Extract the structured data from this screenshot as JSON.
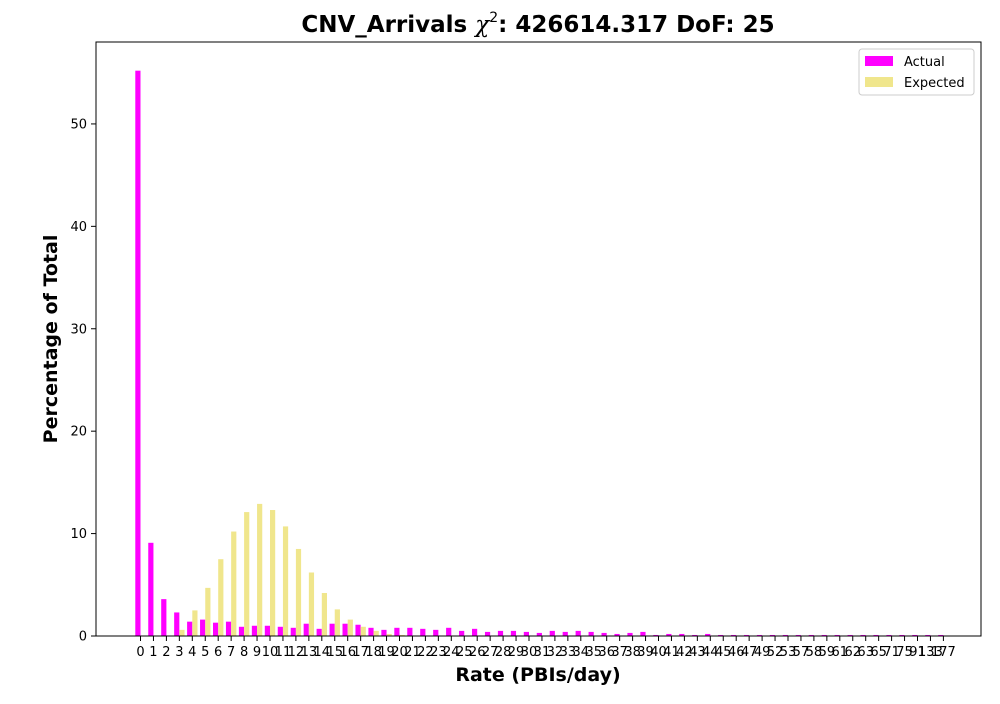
{
  "chart_data": {
    "type": "bar",
    "title_prefix": "CNV_Arrivals ",
    "title_chi": "χ",
    "title_sup": "2",
    "title_suffix": ": 426614.317 DoF: 25",
    "xlabel": "Rate (PBIs/day)",
    "ylabel": "Percentage of Total",
    "ylim": [
      0,
      58
    ],
    "yticks": [
      0,
      10,
      20,
      30,
      40,
      50
    ],
    "legend_position": "top-right",
    "colors": {
      "actual": "#ff00ff",
      "expected": "#f0e68c"
    },
    "categories": [
      "0",
      "1",
      "2",
      "3",
      "4",
      "5",
      "6",
      "7",
      "8",
      "9",
      "10",
      "11",
      "12",
      "13",
      "14",
      "15",
      "16",
      "17",
      "18",
      "19",
      "20",
      "21",
      "22",
      "23",
      "24",
      "25",
      "26",
      "27",
      "28",
      "29",
      "30",
      "31",
      "32",
      "33",
      "34",
      "35",
      "36",
      "37",
      "38",
      "39",
      "40",
      "41",
      "42",
      "43",
      "44",
      "45",
      "46",
      "47",
      "49",
      "52",
      "53",
      "57",
      "58",
      "59",
      "61",
      "62",
      "63",
      "65",
      "71",
      "75",
      "91",
      "133",
      "177"
    ],
    "series": [
      {
        "name": "Actual",
        "values": [
          55.2,
          9.1,
          3.6,
          2.3,
          1.4,
          1.6,
          1.3,
          1.4,
          0.9,
          1.0,
          1.0,
          0.9,
          0.8,
          1.2,
          0.7,
          1.2,
          1.2,
          1.1,
          0.8,
          0.6,
          0.8,
          0.8,
          0.7,
          0.6,
          0.8,
          0.5,
          0.7,
          0.4,
          0.5,
          0.5,
          0.4,
          0.3,
          0.5,
          0.4,
          0.5,
          0.4,
          0.3,
          0.2,
          0.3,
          0.4,
          0.1,
          0.2,
          0.2,
          0.1,
          0.2,
          0.1,
          0.1,
          0.1,
          0.1,
          0.1,
          0.1,
          0.1,
          0.1,
          0.1,
          0.1,
          0.1,
          0.1,
          0.1,
          0.1,
          0.1,
          0.1,
          0.1,
          0.1
        ]
      },
      {
        "name": "Expected",
        "values": [
          0.0,
          0.0,
          0.0,
          0.6,
          2.5,
          4.7,
          7.5,
          10.2,
          12.1,
          12.9,
          12.3,
          10.7,
          8.5,
          6.2,
          4.2,
          2.6,
          1.6,
          0.9,
          0.5,
          0.2,
          0.1,
          0.0,
          0.0,
          0.0,
          0.0,
          0.0,
          0.0,
          0.0,
          0.0,
          0.0,
          0.0,
          0.0,
          0.0,
          0.0,
          0.0,
          0.0,
          0.0,
          0.0,
          0.0,
          0.0,
          0.0,
          0.0,
          0.0,
          0.0,
          0.0,
          0.0,
          0.0,
          0.0,
          0.0,
          0.0,
          0.0,
          0.0,
          0.0,
          0.0,
          0.0,
          0.0,
          0.0,
          0.0,
          0.0,
          0.0,
          0.0,
          0.0,
          0.0
        ]
      }
    ]
  }
}
